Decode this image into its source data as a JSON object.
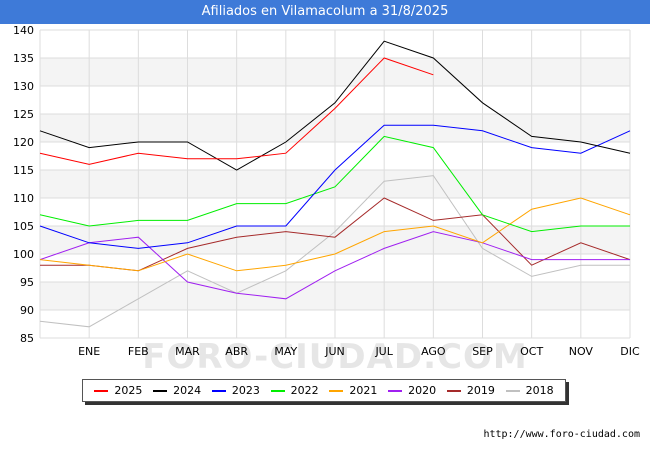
{
  "header": {
    "title": "Afiliados en Vilamacolum a 31/8/2025"
  },
  "footer": {
    "url": "http://www.foro-ciudad.com"
  },
  "watermark": "FORO-CIUDAD.COM",
  "chart_data": {
    "type": "line",
    "title": "Afiliados en Vilamacolum a 31/8/2025",
    "xlabel": "",
    "ylabel": "",
    "categories": [
      "",
      "ENE",
      "FEB",
      "MAR",
      "ABR",
      "MAY",
      "JUN",
      "JUL",
      "AGO",
      "SEP",
      "OCT",
      "NOV",
      "DIC"
    ],
    "ylim": [
      85,
      140
    ],
    "yticks": [
      85,
      90,
      95,
      100,
      105,
      110,
      115,
      120,
      125,
      130,
      135,
      140
    ],
    "grid": true,
    "legend_position": "bottom",
    "series": [
      {
        "name": "2025",
        "color": "#ff0000",
        "values": [
          118,
          116,
          118,
          117,
          117,
          118,
          126,
          135,
          132,
          null,
          null,
          null,
          null
        ]
      },
      {
        "name": "2024",
        "color": "#000000",
        "values": [
          122,
          119,
          120,
          120,
          115,
          120,
          127,
          138,
          135,
          127,
          121,
          120,
          118
        ]
      },
      {
        "name": "2023",
        "color": "#0000ff",
        "values": [
          105,
          102,
          101,
          102,
          105,
          105,
          115,
          123,
          123,
          122,
          119,
          118,
          122
        ]
      },
      {
        "name": "2022",
        "color": "#00ee00",
        "values": [
          107,
          105,
          106,
          106,
          109,
          109,
          112,
          121,
          119,
          107,
          104,
          105,
          105
        ]
      },
      {
        "name": "2021",
        "color": "#ffa500",
        "values": [
          99,
          98,
          97,
          100,
          97,
          98,
          100,
          104,
          105,
          102,
          108,
          110,
          107
        ]
      },
      {
        "name": "2020",
        "color": "#a020f0",
        "values": [
          99,
          102,
          103,
          95,
          93,
          92,
          97,
          101,
          104,
          102,
          99,
          99,
          99
        ]
      },
      {
        "name": "2019",
        "color": "#a52a2a",
        "values": [
          98,
          98,
          97,
          101,
          103,
          104,
          103,
          110,
          106,
          107,
          98,
          102,
          99
        ]
      },
      {
        "name": "2018",
        "color": "#c0c0c0",
        "values": [
          88,
          87,
          92,
          97,
          93,
          97,
          104,
          113,
          114,
          101,
          96,
          98,
          98
        ]
      }
    ]
  }
}
